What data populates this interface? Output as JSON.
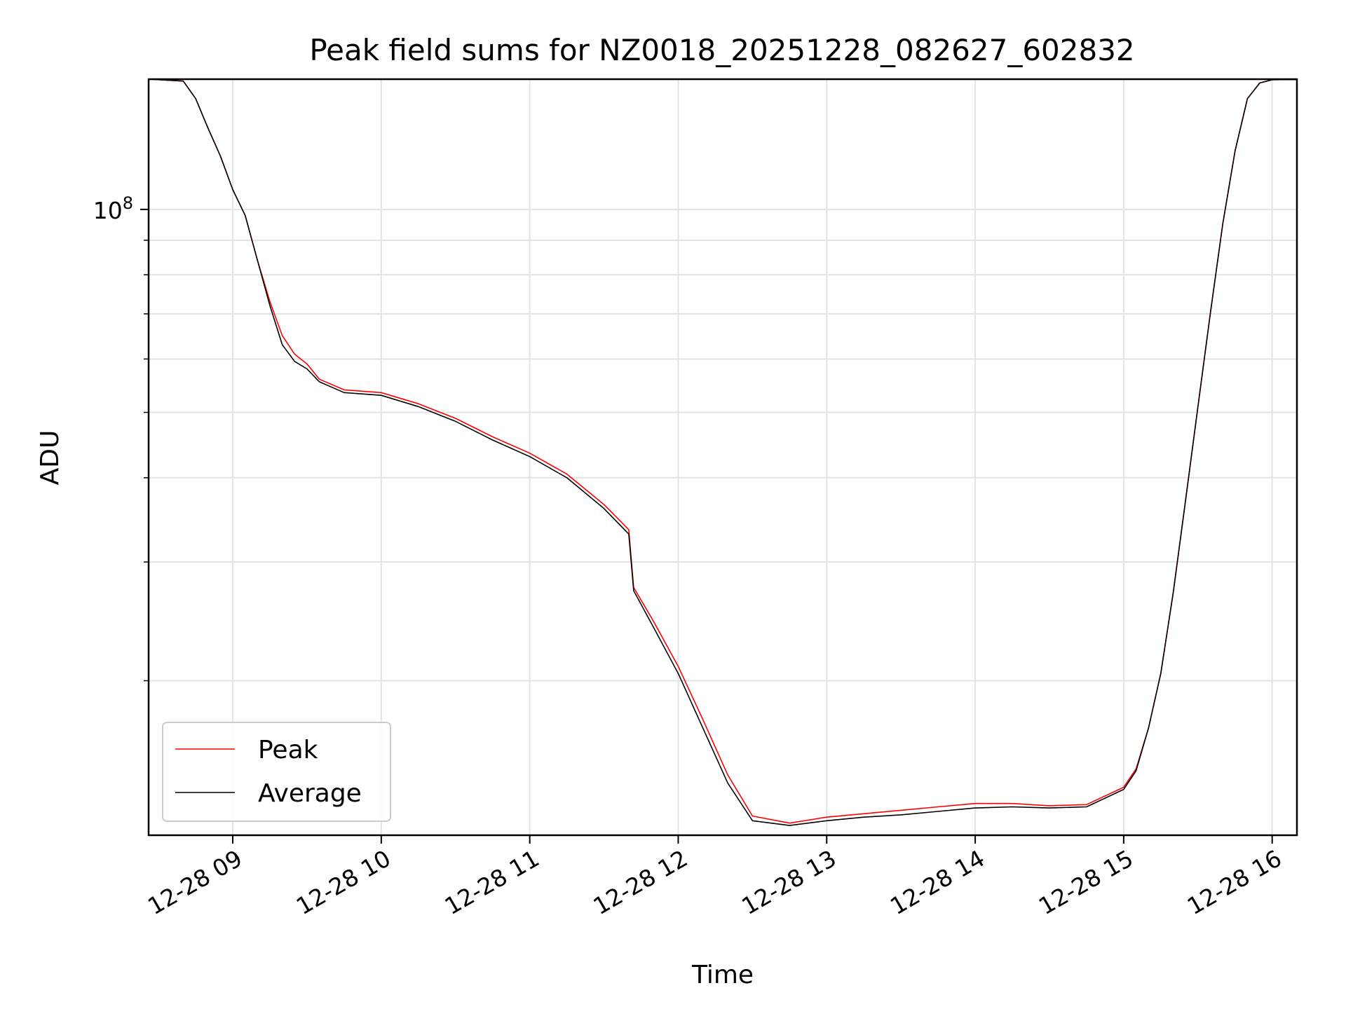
{
  "chart_data": {
    "type": "line",
    "title": "Peak field sums for NZ0018_20251228_082627_602832",
    "xlabel": "Time",
    "ylabel": "ADU",
    "y_scale": "log",
    "ylim": [
      11800000,
      156000000
    ],
    "xlim": [
      "12-28 08:26",
      "12-28 16:10"
    ],
    "x_tick_labels": [
      "12-28 09",
      "12-28 10",
      "12-28 11",
      "12-28 12",
      "12-28 13",
      "12-28 14",
      "12-28 15",
      "12-28 16"
    ],
    "y_tick_labels": [
      {
        "text": "10",
        "sup": "8"
      }
    ],
    "grid": true,
    "legend": "lower-left",
    "colors": {
      "peak": "#ff0000",
      "average": "#000000"
    },
    "series": [
      {
        "name": "Peak",
        "x": [
          "12-28 08:26",
          "12-28 08:40",
          "12-28 08:45",
          "12-28 08:50",
          "12-28 08:55",
          "12-28 09:00",
          "12-28 09:05",
          "12-28 09:10",
          "12-28 09:15",
          "12-28 09:20",
          "12-28 09:25",
          "12-28 09:30",
          "12-28 09:35",
          "12-28 09:45",
          "12-28 10:00",
          "12-28 10:15",
          "12-28 10:30",
          "12-28 10:45",
          "12-28 11:00",
          "12-28 11:15",
          "12-28 11:30",
          "12-28 11:40",
          "12-28 11:42",
          "12-28 11:50",
          "12-28 12:00",
          "12-28 12:10",
          "12-28 12:20",
          "12-28 12:30",
          "12-28 12:45",
          "12-28 13:00",
          "12-28 13:15",
          "12-28 13:30",
          "12-28 13:45",
          "12-28 14:00",
          "12-28 14:15",
          "12-28 14:30",
          "12-28 14:45",
          "12-28 15:00",
          "12-28 15:05",
          "12-28 15:10",
          "12-28 15:15",
          "12-28 15:20",
          "12-28 15:25",
          "12-28 15:30",
          "12-28 15:35",
          "12-28 15:40",
          "12-28 15:45",
          "12-28 15:50",
          "12-28 15:55",
          "12-28 16:00",
          "12-28 16:10"
        ],
        "values": [
          156000000,
          155000000,
          146000000,
          132000000,
          120000000,
          107000000,
          98000000,
          84000000,
          73000000,
          65000000,
          61000000,
          59000000,
          56000000,
          54000000,
          53500000,
          51500000,
          49000000,
          46000000,
          43500000,
          40500000,
          36500000,
          33500000,
          27500000,
          24500000,
          21000000,
          17500000,
          14500000,
          12600000,
          12300000,
          12550000,
          12700000,
          12850000,
          13000000,
          13150000,
          13150000,
          13050000,
          13100000,
          13900000,
          14800000,
          17000000,
          20500000,
          27000000,
          37000000,
          51000000,
          70000000,
          95000000,
          122000000,
          146000000,
          154000000,
          155700000,
          155800000
        ]
      },
      {
        "name": "Average",
        "x": [
          "12-28 08:26",
          "12-28 08:40",
          "12-28 08:45",
          "12-28 08:50",
          "12-28 08:55",
          "12-28 09:00",
          "12-28 09:05",
          "12-28 09:10",
          "12-28 09:15",
          "12-28 09:20",
          "12-28 09:25",
          "12-28 09:30",
          "12-28 09:35",
          "12-28 09:45",
          "12-28 10:00",
          "12-28 10:15",
          "12-28 10:30",
          "12-28 10:45",
          "12-28 11:00",
          "12-28 11:15",
          "12-28 11:30",
          "12-28 11:40",
          "12-28 11:42",
          "12-28 11:50",
          "12-28 12:00",
          "12-28 12:10",
          "12-28 12:20",
          "12-28 12:30",
          "12-28 12:45",
          "12-28 13:00",
          "12-28 13:15",
          "12-28 13:30",
          "12-28 13:45",
          "12-28 14:00",
          "12-28 14:15",
          "12-28 14:30",
          "12-28 14:45",
          "12-28 15:00",
          "12-28 15:05",
          "12-28 15:10",
          "12-28 15:15",
          "12-28 15:20",
          "12-28 15:25",
          "12-28 15:30",
          "12-28 15:35",
          "12-28 15:40",
          "12-28 15:45",
          "12-28 15:50",
          "12-28 15:55",
          "12-28 16:00",
          "12-28 16:10"
        ],
        "values": [
          156000000,
          155000000,
          146000000,
          132000000,
          120000000,
          107000000,
          98000000,
          84000000,
          72000000,
          63000000,
          59500000,
          58000000,
          55500000,
          53500000,
          53000000,
          51000000,
          48500000,
          45500000,
          43000000,
          40000000,
          36000000,
          33000000,
          27200000,
          24000000,
          20500000,
          17000000,
          14100000,
          12400000,
          12200000,
          12400000,
          12550000,
          12650000,
          12800000,
          12950000,
          13000000,
          12950000,
          13000000,
          13800000,
          14700000,
          17000000,
          20500000,
          27000000,
          37000000,
          51000000,
          70000000,
          95000000,
          122000000,
          146000000,
          154000000,
          155700000,
          155800000
        ]
      }
    ]
  }
}
